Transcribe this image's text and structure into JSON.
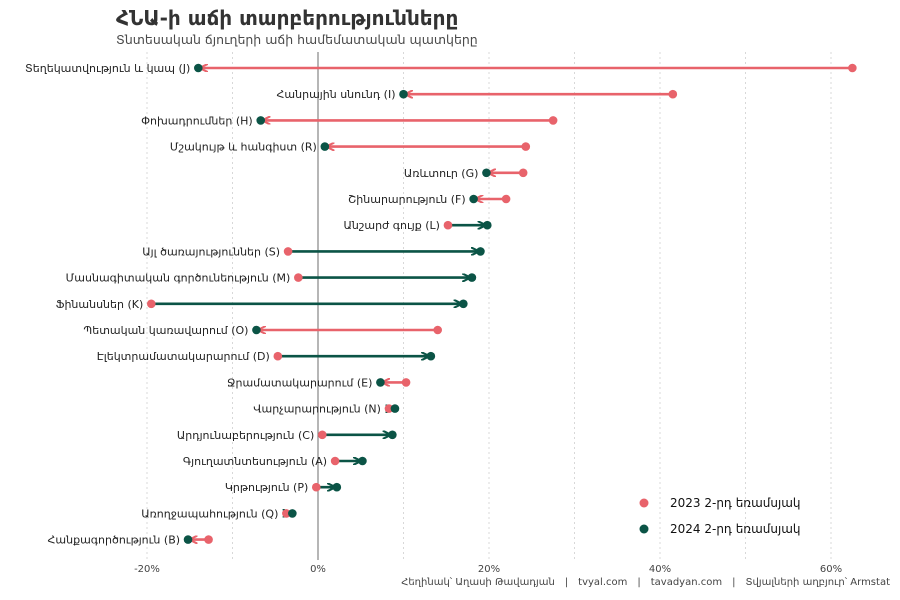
{
  "chart_data": {
    "type": "dumbbell",
    "title": "ՀՆԱ-ի աճի տարբերությունները",
    "subtitle": "Տնտեսական ճյուղերի աճի համեմատական պատկերը",
    "xlim": [
      -0.2,
      0.66
    ],
    "xticks": [
      -0.2,
      0,
      0.2,
      0.4,
      0.6
    ],
    "xtick_labels": [
      "-20%",
      "0%",
      "20%",
      "40%",
      "60%"
    ],
    "grid": "vertical-dotted",
    "legend_position": "bottom-right",
    "series": [
      {
        "name": "2023 2-րդ եռամսյակ",
        "color": "#e8636b"
      },
      {
        "name": "2024 2-րդ եռամսյակ",
        "color": "#0b5446"
      }
    ],
    "categories": [
      {
        "label": "Տեղեկատվություն և կապ (J)",
        "v2023": 0.625,
        "v2024": -0.14
      },
      {
        "label": "Հանրային սնունդ (I)",
        "v2023": 0.415,
        "v2024": 0.1
      },
      {
        "label": "Փոխադրումներ (H)",
        "v2023": 0.275,
        "v2024": -0.067
      },
      {
        "label": "Մշակույթ և հանգիստ (R)",
        "v2023": 0.243,
        "v2024": 0.008
      },
      {
        "label": "Առևտուր (G)",
        "v2023": 0.24,
        "v2024": 0.197
      },
      {
        "label": "Շինարարություն (F)",
        "v2023": 0.22,
        "v2024": 0.182
      },
      {
        "label": "Անշարժ գույք (L)",
        "v2023": 0.152,
        "v2024": 0.198
      },
      {
        "label": "Այլ ծառայություններ (S)",
        "v2023": -0.035,
        "v2024": 0.19
      },
      {
        "label": "Մասնագիտական գործունեություն (M)",
        "v2023": -0.023,
        "v2024": 0.18
      },
      {
        "label": "Ֆինանսներ (K)",
        "v2023": -0.195,
        "v2024": 0.17
      },
      {
        "label": "Պետական կառավարում (O)",
        "v2023": 0.14,
        "v2024": -0.072
      },
      {
        "label": "Էլեկտրամատակարարում (D)",
        "v2023": -0.047,
        "v2024": 0.132
      },
      {
        "label": "Ջրամատակարարում (E)",
        "v2023": 0.103,
        "v2024": 0.073
      },
      {
        "label": "Վարչարարություն (N)",
        "v2023": 0.083,
        "v2024": 0.09
      },
      {
        "label": "Արդյունաբերություն (C)",
        "v2023": 0.005,
        "v2024": 0.087
      },
      {
        "label": "Գյուղատնտեսություն (A)",
        "v2023": 0.02,
        "v2024": 0.052
      },
      {
        "label": "Կրթություն (P)",
        "v2023": -0.002,
        "v2024": 0.022
      },
      {
        "label": "Առողջապահություն (Q)",
        "v2023": -0.037,
        "v2024": -0.03
      },
      {
        "label": "Հանքագործություն (B)",
        "v2023": -0.128,
        "v2024": -0.152
      }
    ]
  },
  "caption": {
    "author": "Հեղինակ՝ Աղասի Թավադյան",
    "site1": "tvyal.com",
    "site2": "tavadyan.com",
    "source": "Տվյալների աղբյուր՝ Armstat",
    "separator": "|"
  }
}
